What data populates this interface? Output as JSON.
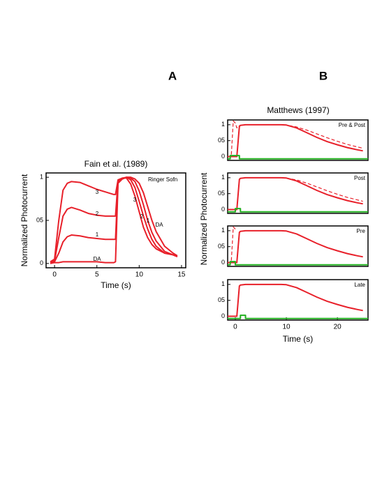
{
  "chart_data": [
    {
      "type": "line",
      "label": "A",
      "title": "Fain et al. (1989)",
      "xlabel": "Time (s)",
      "ylabel": "Normalized Photocurrent",
      "annotations": [
        "Ringer Sofn"
      ],
      "xlim": [
        -1,
        15.5
      ],
      "xticks": [
        0,
        5,
        10,
        15
      ],
      "ylim": [
        -0.05,
        1.05
      ],
      "yticks": [
        0,
        {
          "value": 0.5,
          "label": "05"
        },
        1
      ],
      "x": [
        -0.5,
        0,
        0.5,
        1,
        1.5,
        2,
        3,
        4,
        5,
        6,
        7,
        7.2,
        7.5,
        8,
        8.5,
        9,
        9.5,
        10,
        10.5,
        11,
        11.5,
        12,
        13,
        14,
        14.5
      ],
      "series": [
        {
          "name": "3",
          "color": "#e8202a",
          "values": [
            0.02,
            0.05,
            0.5,
            0.85,
            0.93,
            0.95,
            0.94,
            0.9,
            0.86,
            0.83,
            0.8,
            0.8,
            0.97,
            0.99,
            0.99,
            0.92,
            0.78,
            0.6,
            0.42,
            0.3,
            0.22,
            0.17,
            0.12,
            0.1,
            0.08
          ]
        },
        {
          "name": "2",
          "color": "#e8202a",
          "values": [
            0.01,
            0.03,
            0.3,
            0.55,
            0.63,
            0.65,
            0.62,
            0.58,
            0.56,
            0.55,
            0.55,
            0.55,
            0.96,
            0.99,
            1,
            0.97,
            0.88,
            0.72,
            0.55,
            0.4,
            0.28,
            0.2,
            0.12,
            0.1,
            0.08
          ]
        },
        {
          "name": "1",
          "color": "#e8202a",
          "values": [
            0,
            0.02,
            0.12,
            0.25,
            0.31,
            0.33,
            0.32,
            0.3,
            0.29,
            0.28,
            0.28,
            0.28,
            0.95,
            0.98,
            1,
            0.99,
            0.95,
            0.84,
            0.68,
            0.5,
            0.36,
            0.26,
            0.14,
            0.1,
            0.08
          ]
        },
        {
          "name": "DA",
          "color": "#e8202a",
          "values": [
            0,
            0.01,
            0.01,
            0.02,
            0.02,
            0.02,
            0.02,
            0.02,
            0.02,
            0.01,
            0.01,
            0.02,
            0.93,
            0.98,
            1,
            1,
            0.98,
            0.93,
            0.82,
            0.66,
            0.5,
            0.37,
            0.2,
            0.12,
            0.09
          ]
        }
      ]
    },
    {
      "type": "line",
      "label": "B",
      "title": "Matthews (1997)",
      "ylabel": "Normalized Photocurrent",
      "annotations": [
        "Pre & Post"
      ],
      "xlim": [
        -1.5,
        26
      ],
      "ylim": [
        -0.12,
        1.15
      ],
      "yticks": [
        0,
        {
          "value": 0.5,
          "label": "05"
        },
        1
      ],
      "series": [
        {
          "color": "#e8202a",
          "x": [
            -1.5,
            0.3,
            0.8,
            1,
            2,
            5,
            9,
            10,
            12,
            14,
            16,
            18,
            20,
            22,
            24,
            25
          ],
          "values": [
            0,
            0,
            0.95,
            0.98,
            1,
            1,
            1,
            0.99,
            0.9,
            0.75,
            0.6,
            0.47,
            0.37,
            0.28,
            0.21,
            0.18
          ]
        },
        {
          "color": "#e8202a",
          "dash": true,
          "x": [
            -1.5,
            -0.8,
            -0.4,
            0,
            0.3,
            0.8,
            2,
            9,
            10,
            12,
            14,
            16,
            18,
            20,
            22,
            24,
            25
          ],
          "values": [
            0,
            0,
            1.12,
            1.05,
            0.9,
            0.97,
            1,
            1,
            0.99,
            0.93,
            0.83,
            0.71,
            0.59,
            0.48,
            0.38,
            0.3,
            0.26
          ]
        },
        {
          "color": "#22b020",
          "x": [
            -1.5,
            -1,
            -1,
            0.8,
            0.8,
            26
          ],
          "values": [
            -0.07,
            -0.07,
            0.03,
            0.03,
            -0.07,
            -0.07
          ]
        }
      ]
    },
    {
      "type": "line",
      "annotations": [
        "Post"
      ],
      "xlim": [
        -1.5,
        26
      ],
      "ylim": [
        -0.12,
        1.15
      ],
      "yticks": [
        0,
        {
          "value": 0.5,
          "label": "05"
        },
        1
      ],
      "series": [
        {
          "color": "#e8202a",
          "x": [
            -1.5,
            0.3,
            0.8,
            1,
            2,
            5,
            9,
            10,
            12,
            14,
            16,
            18,
            20,
            22,
            24,
            25
          ],
          "values": [
            0,
            0,
            0.95,
            0.98,
            1,
            1,
            1,
            0.99,
            0.9,
            0.75,
            0.6,
            0.47,
            0.37,
            0.28,
            0.21,
            0.18
          ]
        },
        {
          "color": "#e8202a",
          "dash": true,
          "x": [
            10,
            12,
            14,
            16,
            18,
            20,
            22,
            24,
            25
          ],
          "values": [
            0.99,
            0.93,
            0.83,
            0.71,
            0.59,
            0.48,
            0.38,
            0.3,
            0.26
          ]
        },
        {
          "color": "#22b020",
          "x": [
            -1.5,
            0,
            0,
            1,
            1,
            26
          ],
          "values": [
            -0.07,
            -0.07,
            0.03,
            0.03,
            -0.07,
            -0.07
          ]
        }
      ]
    },
    {
      "type": "line",
      "annotations": [
        "Pre"
      ],
      "xlim": [
        -1.5,
        26
      ],
      "ylim": [
        -0.12,
        1.15
      ],
      "yticks": [
        0,
        {
          "value": 0.5,
          "label": "05"
        },
        1
      ],
      "series": [
        {
          "color": "#e8202a",
          "x": [
            -1.5,
            0.3,
            0.8,
            1,
            2,
            5,
            9,
            10,
            12,
            14,
            16,
            18,
            20,
            22,
            24,
            25
          ],
          "values": [
            0,
            0,
            0.95,
            0.98,
            1,
            1,
            1,
            0.99,
            0.9,
            0.75,
            0.6,
            0.47,
            0.37,
            0.28,
            0.21,
            0.18
          ]
        },
        {
          "color": "#e8202a",
          "dash": true,
          "x": [
            -1.5,
            -0.8,
            -0.4,
            0
          ],
          "values": [
            0,
            0,
            1.12,
            1.05
          ]
        },
        {
          "color": "#22b020",
          "x": [
            -1.5,
            -1,
            -1,
            0,
            0,
            26
          ],
          "values": [
            -0.07,
            -0.07,
            0.03,
            0.03,
            -0.07,
            -0.07
          ]
        }
      ]
    },
    {
      "type": "line",
      "annotations": [
        "Late"
      ],
      "xlabel": "Time (s)",
      "xlim": [
        -1.5,
        26
      ],
      "xticks": [
        0,
        10,
        20
      ],
      "ylim": [
        -0.12,
        1.15
      ],
      "yticks": [
        0,
        {
          "value": 0.5,
          "label": "05"
        },
        1
      ],
      "series": [
        {
          "color": "#e8202a",
          "x": [
            -1.5,
            0.3,
            0.8,
            1,
            2,
            5,
            9,
            10,
            12,
            14,
            16,
            18,
            20,
            22,
            24,
            25
          ],
          "values": [
            0,
            0,
            0.95,
            0.98,
            1,
            1,
            1,
            0.99,
            0.9,
            0.75,
            0.6,
            0.47,
            0.37,
            0.28,
            0.21,
            0.18
          ]
        },
        {
          "color": "#22b020",
          "x": [
            -1.5,
            1,
            1,
            2,
            2,
            26
          ],
          "values": [
            -0.07,
            -0.07,
            0.03,
            0.03,
            -0.07,
            -0.07
          ]
        }
      ]
    }
  ]
}
